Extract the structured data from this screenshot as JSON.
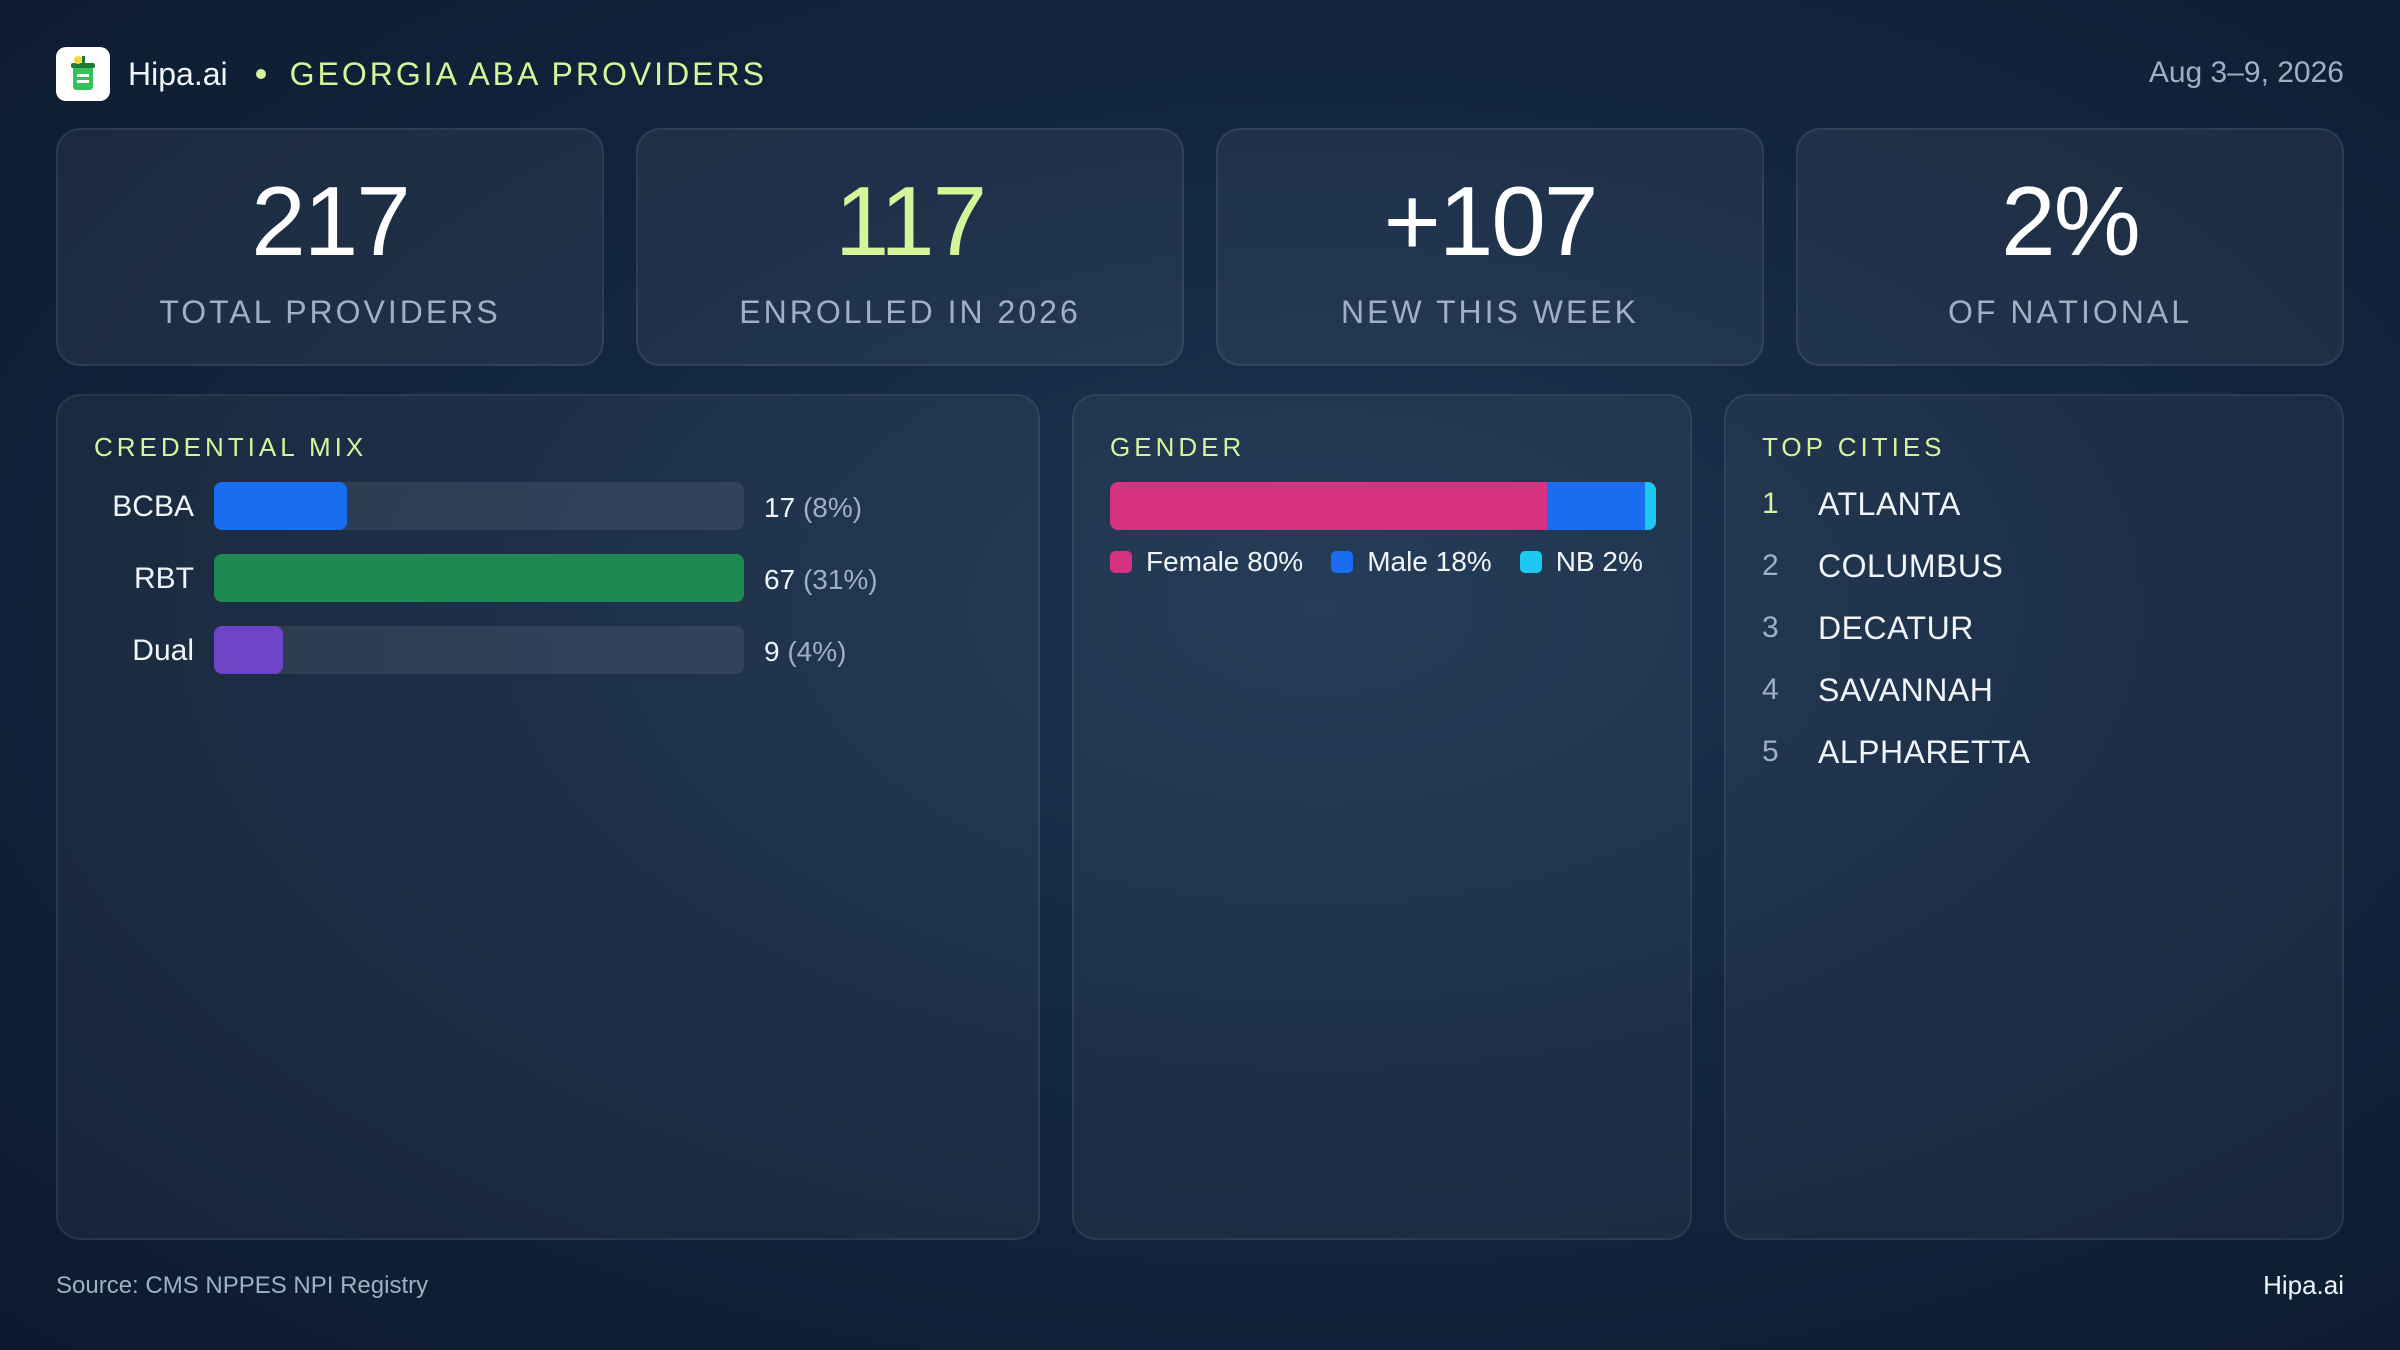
{
  "header": {
    "brand": "Hipa.ai",
    "logo_icon": "drink-cup-icon",
    "title": "GEORGIA ABA PROVIDERS",
    "date_range": "Aug 3–9, 2026"
  },
  "kpis": [
    {
      "value": "217",
      "label": "TOTAL PROVIDERS"
    },
    {
      "value": "117",
      "label": "ENROLLED IN 2026"
    },
    {
      "value": "+107",
      "label": "NEW THIS WEEK"
    },
    {
      "value": "2%",
      "label": "OF NATIONAL"
    }
  ],
  "credential_mix": {
    "title": "CREDENTIAL MIX",
    "rows": [
      {
        "label": "BCBA",
        "count": "17",
        "percent": "(8%)",
        "fraction": 0.25,
        "color": "#1a6cf0"
      },
      {
        "label": "RBT",
        "count": "67",
        "percent": "(31%)",
        "fraction": 1.0,
        "color": "#1d8a52"
      },
      {
        "label": "Dual",
        "count": "9",
        "percent": "(4%)",
        "fraction": 0.13,
        "color": "#6e44c4"
      }
    ]
  },
  "gender": {
    "title": "GENDER",
    "segments": [
      {
        "legend": "Female 80%",
        "percent": 80,
        "color": "#d6327f"
      },
      {
        "legend": "Male 18%",
        "percent": 18,
        "color": "#1a6cf0"
      },
      {
        "legend": "NB 2%",
        "percent": 2,
        "color": "#1ec8f0"
      }
    ]
  },
  "top_cities": {
    "title": "TOP CITIES",
    "items": [
      {
        "rank": "1",
        "name": "ATLANTA"
      },
      {
        "rank": "2",
        "name": "COLUMBUS"
      },
      {
        "rank": "3",
        "name": "DECATUR"
      },
      {
        "rank": "4",
        "name": "SAVANNAH"
      },
      {
        "rank": "5",
        "name": "ALPHARETTA"
      }
    ]
  },
  "footer": {
    "source": "Source: CMS NPPES NPI Registry",
    "brand": "Hipa.ai"
  }
}
